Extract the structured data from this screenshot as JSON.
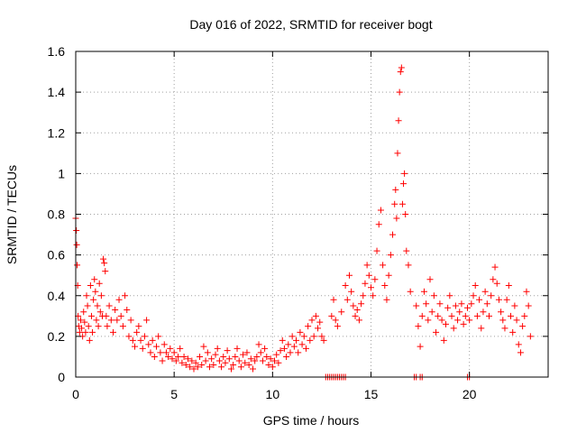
{
  "chart_data": {
    "type": "scatter",
    "title": "Day 016 of 2022, SRMTID for receiver bogt",
    "xlabel": "GPS time / hours",
    "ylabel": "SRMTID / TECUs",
    "xlim": [
      0,
      24
    ],
    "ylim": [
      0,
      1.6
    ],
    "x_ticks": [
      0,
      5,
      10,
      15,
      20
    ],
    "x_tick_labels": [
      "0",
      "5",
      "10",
      "15",
      "20"
    ],
    "y_ticks": [
      0,
      0.2,
      0.4,
      0.6,
      0.8,
      1,
      1.2,
      1.4,
      1.6
    ],
    "y_tick_labels": [
      "0",
      "0.2",
      "0.4",
      "0.6",
      "0.8",
      "1",
      "1.2",
      "1.4",
      "1.6"
    ],
    "grid": true,
    "marker": "+",
    "color": "#ff0000",
    "series": [
      {
        "name": "SRMTID",
        "points": [
          [
            0.0,
            0.78
          ],
          [
            0.03,
            0.72
          ],
          [
            0.05,
            0.65
          ],
          [
            0.07,
            0.55
          ],
          [
            0.1,
            0.45
          ],
          [
            0.12,
            0.3
          ],
          [
            0.15,
            0.25
          ],
          [
            0.2,
            0.22
          ],
          [
            0.25,
            0.28
          ],
          [
            0.3,
            0.24
          ],
          [
            0.35,
            0.2
          ],
          [
            0.4,
            0.32
          ],
          [
            0.45,
            0.27
          ],
          [
            0.5,
            0.22
          ],
          [
            0.55,
            0.4
          ],
          [
            0.6,
            0.35
          ],
          [
            0.65,
            0.25
          ],
          [
            0.7,
            0.18
          ],
          [
            0.75,
            0.45
          ],
          [
            0.8,
            0.3
          ],
          [
            0.85,
            0.22
          ],
          [
            0.9,
            0.38
          ],
          [
            0.95,
            0.48
          ],
          [
            1.0,
            0.42
          ],
          [
            1.05,
            0.28
          ],
          [
            1.1,
            0.35
          ],
          [
            1.15,
            0.25
          ],
          [
            1.2,
            0.46
          ],
          [
            1.25,
            0.32
          ],
          [
            1.3,
            0.4
          ],
          [
            1.35,
            0.3
          ],
          [
            1.4,
            0.58
          ],
          [
            1.45,
            0.56
          ],
          [
            1.5,
            0.52
          ],
          [
            1.55,
            0.3
          ],
          [
            1.6,
            0.25
          ],
          [
            1.7,
            0.35
          ],
          [
            1.8,
            0.28
          ],
          [
            1.9,
            0.22
          ],
          [
            2.0,
            0.33
          ],
          [
            2.1,
            0.28
          ],
          [
            2.2,
            0.38
          ],
          [
            2.3,
            0.3
          ],
          [
            2.4,
            0.25
          ],
          [
            2.5,
            0.4
          ],
          [
            2.6,
            0.33
          ],
          [
            2.7,
            0.2
          ],
          [
            2.8,
            0.28
          ],
          [
            2.9,
            0.18
          ],
          [
            3.0,
            0.15
          ],
          [
            3.1,
            0.22
          ],
          [
            3.2,
            0.25
          ],
          [
            3.3,
            0.18
          ],
          [
            3.4,
            0.14
          ],
          [
            3.5,
            0.2
          ],
          [
            3.6,
            0.28
          ],
          [
            3.7,
            0.16
          ],
          [
            3.8,
            0.12
          ],
          [
            3.9,
            0.18
          ],
          [
            4.0,
            0.1
          ],
          [
            4.1,
            0.15
          ],
          [
            4.2,
            0.2
          ],
          [
            4.3,
            0.12
          ],
          [
            4.4,
            0.08
          ],
          [
            4.5,
            0.16
          ],
          [
            4.6,
            0.12
          ],
          [
            4.7,
            0.1
          ],
          [
            4.8,
            0.14
          ],
          [
            4.9,
            0.09
          ],
          [
            5.0,
            0.12
          ],
          [
            5.1,
            0.08
          ],
          [
            5.2,
            0.1
          ],
          [
            5.3,
            0.14
          ],
          [
            5.4,
            0.07
          ],
          [
            5.5,
            0.1
          ],
          [
            5.6,
            0.06
          ],
          [
            5.7,
            0.09
          ],
          [
            5.8,
            0.05
          ],
          [
            5.9,
            0.08
          ],
          [
            6.0,
            0.04
          ],
          [
            6.1,
            0.07
          ],
          [
            6.2,
            0.05
          ],
          [
            6.3,
            0.1
          ],
          [
            6.4,
            0.06
          ],
          [
            6.5,
            0.15
          ],
          [
            6.6,
            0.08
          ],
          [
            6.7,
            0.12
          ],
          [
            6.8,
            0.05
          ],
          [
            6.9,
            0.09
          ],
          [
            7.0,
            0.06
          ],
          [
            7.1,
            0.11
          ],
          [
            7.2,
            0.14
          ],
          [
            7.3,
            0.08
          ],
          [
            7.4,
            0.05
          ],
          [
            7.5,
            0.1
          ],
          [
            7.6,
            0.07
          ],
          [
            7.7,
            0.13
          ],
          [
            7.8,
            0.09
          ],
          [
            7.9,
            0.04
          ],
          [
            8.0,
            0.06
          ],
          [
            8.1,
            0.1
          ],
          [
            8.2,
            0.14
          ],
          [
            8.3,
            0.08
          ],
          [
            8.4,
            0.05
          ],
          [
            8.5,
            0.11
          ],
          [
            8.6,
            0.07
          ],
          [
            8.7,
            0.12
          ],
          [
            8.8,
            0.06
          ],
          [
            8.9,
            0.09
          ],
          [
            9.0,
            0.04
          ],
          [
            9.1,
            0.08
          ],
          [
            9.2,
            0.1
          ],
          [
            9.3,
            0.16
          ],
          [
            9.4,
            0.12
          ],
          [
            9.5,
            0.08
          ],
          [
            9.6,
            0.14
          ],
          [
            9.7,
            0.1
          ],
          [
            9.8,
            0.06
          ],
          [
            9.9,
            0.09
          ],
          [
            10.0,
            0.05
          ],
          [
            10.1,
            0.08
          ],
          [
            10.2,
            0.11
          ],
          [
            10.3,
            0.07
          ],
          [
            10.4,
            0.13
          ],
          [
            10.5,
            0.18
          ],
          [
            10.6,
            0.14
          ],
          [
            10.7,
            0.1
          ],
          [
            10.8,
            0.16
          ],
          [
            10.9,
            0.12
          ],
          [
            11.0,
            0.2
          ],
          [
            11.1,
            0.15
          ],
          [
            11.2,
            0.18
          ],
          [
            11.3,
            0.12
          ],
          [
            11.4,
            0.22
          ],
          [
            11.5,
            0.16
          ],
          [
            11.6,
            0.2
          ],
          [
            11.7,
            0.14
          ],
          [
            11.8,
            0.25
          ],
          [
            11.9,
            0.18
          ],
          [
            12.0,
            0.28
          ],
          [
            12.1,
            0.2
          ],
          [
            12.2,
            0.3
          ],
          [
            12.3,
            0.24
          ],
          [
            12.4,
            0.27
          ],
          [
            12.5,
            0.2
          ],
          [
            12.6,
            0.18
          ],
          [
            12.7,
            0.0
          ],
          [
            12.8,
            0.0
          ],
          [
            12.9,
            0.0
          ],
          [
            13.0,
            0.0
          ],
          [
            13.1,
            0.0
          ],
          [
            13.2,
            0.0
          ],
          [
            13.3,
            0.0
          ],
          [
            13.4,
            0.0
          ],
          [
            13.5,
            0.0
          ],
          [
            13.6,
            0.0
          ],
          [
            13.7,
            0.0
          ],
          [
            13.0,
            0.3
          ],
          [
            13.1,
            0.38
          ],
          [
            13.2,
            0.28
          ],
          [
            13.3,
            0.25
          ],
          [
            13.5,
            0.32
          ],
          [
            13.7,
            0.45
          ],
          [
            13.8,
            0.38
          ],
          [
            13.9,
            0.5
          ],
          [
            14.0,
            0.42
          ],
          [
            14.1,
            0.35
          ],
          [
            14.2,
            0.3
          ],
          [
            14.3,
            0.33
          ],
          [
            14.4,
            0.28
          ],
          [
            14.5,
            0.36
          ],
          [
            14.6,
            0.4
          ],
          [
            14.7,
            0.46
          ],
          [
            14.8,
            0.55
          ],
          [
            14.9,
            0.5
          ],
          [
            15.0,
            0.44
          ],
          [
            15.1,
            0.4
          ],
          [
            15.2,
            0.48
          ],
          [
            15.3,
            0.62
          ],
          [
            15.4,
            0.75
          ],
          [
            15.5,
            0.82
          ],
          [
            15.6,
            0.55
          ],
          [
            15.7,
            0.45
          ],
          [
            15.8,
            0.38
          ],
          [
            15.9,
            0.5
          ],
          [
            16.0,
            0.6
          ],
          [
            16.1,
            0.7
          ],
          [
            16.2,
            0.85
          ],
          [
            16.25,
            0.92
          ],
          [
            16.3,
            0.78
          ],
          [
            16.35,
            1.1
          ],
          [
            16.4,
            1.26
          ],
          [
            16.45,
            1.4
          ],
          [
            16.5,
            1.5
          ],
          [
            16.55,
            1.52
          ],
          [
            16.6,
            0.85
          ],
          [
            16.65,
            0.95
          ],
          [
            16.7,
            1.0
          ],
          [
            16.75,
            0.8
          ],
          [
            16.8,
            0.62
          ],
          [
            16.9,
            0.55
          ],
          [
            17.0,
            0.42
          ],
          [
            17.2,
            0.0
          ],
          [
            17.3,
            0.0
          ],
          [
            17.5,
            0.0
          ],
          [
            17.6,
            0.0
          ],
          [
            17.3,
            0.35
          ],
          [
            17.4,
            0.25
          ],
          [
            17.5,
            0.15
          ],
          [
            17.6,
            0.3
          ],
          [
            17.7,
            0.42
          ],
          [
            17.8,
            0.36
          ],
          [
            17.9,
            0.28
          ],
          [
            18.0,
            0.48
          ],
          [
            18.1,
            0.32
          ],
          [
            18.2,
            0.4
          ],
          [
            18.3,
            0.22
          ],
          [
            18.4,
            0.3
          ],
          [
            18.5,
            0.36
          ],
          [
            18.6,
            0.28
          ],
          [
            18.7,
            0.18
          ],
          [
            18.8,
            0.26
          ],
          [
            18.9,
            0.34
          ],
          [
            19.0,
            0.4
          ],
          [
            19.1,
            0.3
          ],
          [
            19.2,
            0.24
          ],
          [
            19.3,
            0.35
          ],
          [
            19.4,
            0.28
          ],
          [
            19.5,
            0.32
          ],
          [
            19.6,
            0.36
          ],
          [
            19.7,
            0.26
          ],
          [
            19.8,
            0.3
          ],
          [
            19.9,
            0.34
          ],
          [
            20.0,
            0.28
          ],
          [
            20.1,
            0.36
          ],
          [
            20.2,
            0.4
          ],
          [
            20.3,
            0.45
          ],
          [
            20.4,
            0.3
          ],
          [
            20.5,
            0.38
          ],
          [
            20.6,
            0.24
          ],
          [
            20.7,
            0.32
          ],
          [
            20.8,
            0.42
          ],
          [
            20.9,
            0.36
          ],
          [
            21.0,
            0.3
          ],
          [
            21.1,
            0.4
          ],
          [
            21.2,
            0.48
          ],
          [
            21.3,
            0.54
          ],
          [
            21.4,
            0.46
          ],
          [
            21.5,
            0.38
          ],
          [
            21.6,
            0.32
          ],
          [
            21.7,
            0.28
          ],
          [
            21.8,
            0.24
          ],
          [
            21.9,
            0.38
          ],
          [
            22.0,
            0.45
          ],
          [
            22.1,
            0.3
          ],
          [
            22.2,
            0.22
          ],
          [
            22.3,
            0.35
          ],
          [
            22.4,
            0.28
          ],
          [
            22.5,
            0.16
          ],
          [
            22.6,
            0.12
          ],
          [
            22.7,
            0.25
          ],
          [
            22.8,
            0.3
          ],
          [
            22.9,
            0.42
          ],
          [
            23.0,
            0.35
          ],
          [
            23.1,
            0.2
          ],
          [
            19.9,
            0.0
          ],
          [
            20.0,
            0.0
          ]
        ]
      }
    ]
  }
}
